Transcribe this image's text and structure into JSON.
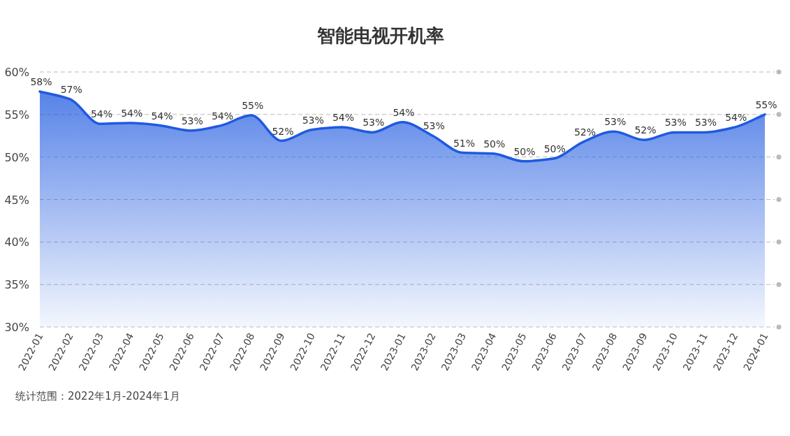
{
  "chart_data": {
    "type": "area",
    "title": "智能电视开机率",
    "categories": [
      "2022-01",
      "2022-02",
      "2022-03",
      "2022-04",
      "2022-05",
      "2022-06",
      "2022-07",
      "2022-08",
      "2022-09",
      "2022-10",
      "2022-11",
      "2022-12",
      "2023-01",
      "2023-02",
      "2023-03",
      "2023-04",
      "2023-05",
      "2023-06",
      "2023-07",
      "2023-08",
      "2023-09",
      "2023-10",
      "2023-11",
      "2023-12",
      "2024-01"
    ],
    "series": [
      {
        "color": "#1f5ae0",
        "values": [
          57.7,
          56.8,
          53.9,
          54.0,
          53.7,
          53.1,
          53.7,
          54.9,
          51.9,
          53.2,
          53.5,
          52.9,
          54.1,
          52.5,
          50.5,
          50.4,
          49.5,
          49.8,
          51.8,
          53.0,
          52.0,
          52.9,
          52.9,
          53.5,
          55.0
        ],
        "value_labels": [
          "58%",
          "57%",
          "54%",
          "54%",
          "54%",
          "53%",
          "54%",
          "55%",
          "52%",
          "53%",
          "54%",
          "53%",
          "54%",
          "53%",
          "51%",
          "50%",
          "50%",
          "50%",
          "52%",
          "53%",
          "52%",
          "53%",
          "53%",
          "54%",
          "55%"
        ]
      }
    ],
    "ylim": [
      30,
      60
    ],
    "yticks": [
      {
        "value": 30,
        "label": "30%"
      },
      {
        "value": 35,
        "label": "35%"
      },
      {
        "value": 40,
        "label": "40%"
      },
      {
        "value": 45,
        "label": "45%"
      },
      {
        "value": 50,
        "label": "50%"
      },
      {
        "value": 55,
        "label": "55%"
      },
      {
        "value": 60,
        "label": "60%"
      }
    ],
    "grid": "y",
    "marker": "none",
    "line_style": "solid",
    "annotations": [
      "统计范围：2022年1月-2024年1月"
    ]
  }
}
